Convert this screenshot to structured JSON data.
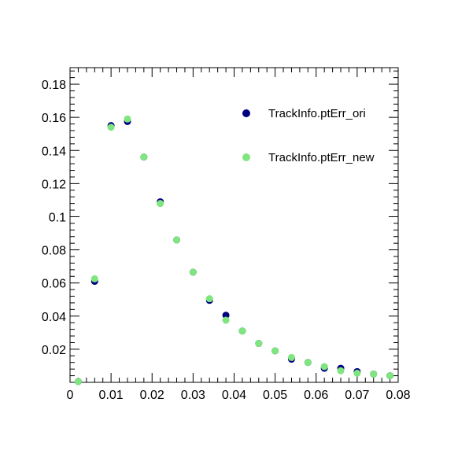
{
  "chart_data": {
    "type": "scatter",
    "title": "",
    "xlabel": "",
    "ylabel": "",
    "xlim": [
      0,
      0.08
    ],
    "ylim": [
      0,
      0.19
    ],
    "grid": false,
    "legend_position": "top-right",
    "x_ticks": [
      "0",
      "0.01",
      "0.02",
      "0.03",
      "0.04",
      "0.05",
      "0.06",
      "0.07",
      "0.08"
    ],
    "y_ticks": [
      "0.02",
      "0.04",
      "0.06",
      "0.08",
      "0.1",
      "0.12",
      "0.14",
      "0.16",
      "0.18"
    ],
    "x": [
      0.002,
      0.006,
      0.01,
      0.014,
      0.018,
      0.022,
      0.026,
      0.03,
      0.034,
      0.038,
      0.042,
      0.046,
      0.05,
      0.054,
      0.058,
      0.062,
      0.066,
      0.07,
      0.074,
      0.078
    ],
    "series": [
      {
        "name": "TrackInfo.ptErr_ori",
        "color": "#000080",
        "values": [
          0.0005,
          0.061,
          0.155,
          0.1575,
          0.136,
          0.109,
          0.086,
          0.0665,
          0.0495,
          0.0405,
          0.031,
          0.0235,
          0.019,
          0.014,
          0.012,
          0.0085,
          0.0085,
          0.0065,
          0.005,
          0.004
        ]
      },
      {
        "name": "TrackInfo.ptErr_new",
        "color": "#7fe57f",
        "values": [
          0.0005,
          0.0625,
          0.154,
          0.159,
          0.136,
          0.108,
          0.086,
          0.0665,
          0.0505,
          0.0375,
          0.031,
          0.0235,
          0.019,
          0.015,
          0.012,
          0.0095,
          0.007,
          0.0055,
          0.005,
          0.004
        ]
      }
    ]
  }
}
